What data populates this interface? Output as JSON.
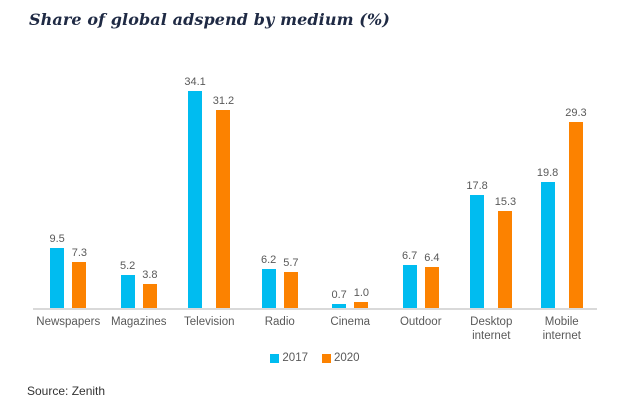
{
  "header": {
    "title": "Share of global adspend by medium (%)"
  },
  "footer": {
    "source": "Source: Zenith"
  },
  "colors": {
    "series_2017": "#00bcf0",
    "series_2020": "#fc8200",
    "axis_line": "#d9d9d9",
    "label_gray": "#595959",
    "title_navy": "#1f2a44"
  },
  "chart_data": {
    "type": "bar",
    "title": "Share of global adspend by medium (%)",
    "categories": [
      "Newspapers",
      "Magazines",
      "Television",
      "Radio",
      "Cinema",
      "Outdoor",
      "Desktop internet",
      "Mobile internet"
    ],
    "series": [
      {
        "name": "2017",
        "color": "#00bcf0",
        "values": [
          9.5,
          5.2,
          34.1,
          6.2,
          0.7,
          6.7,
          17.8,
          19.8
        ]
      },
      {
        "name": "2020",
        "color": "#fc8200",
        "values": [
          7.3,
          3.8,
          31.2,
          5.7,
          1.0,
          6.4,
          15.3,
          29.3
        ]
      }
    ],
    "xlabel": "",
    "ylabel": "",
    "ylim": [
      0,
      37
    ],
    "grid": false,
    "value_labels": true,
    "value_label_decimals": 1,
    "legend_position": "bottom-center"
  }
}
